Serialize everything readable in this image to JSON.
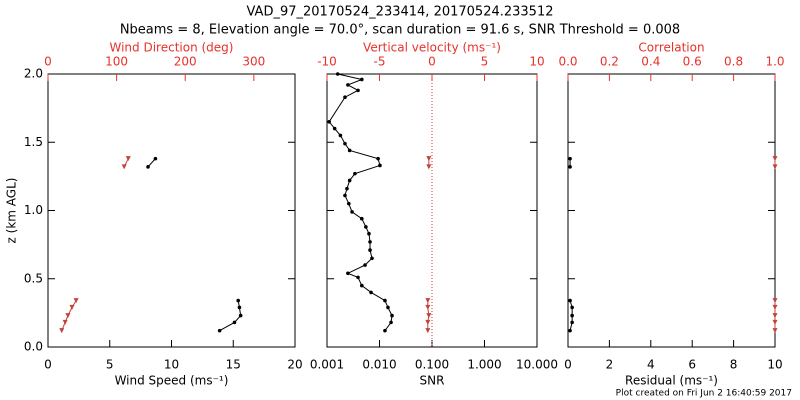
{
  "title": "VAD_97_20170524_233414, 20170524.233512",
  "subtitle": "Nbeams = 8, Elevation angle = 70.0°, scan duration = 91.6 s, SNR Threshold = 0.008",
  "footer": "Plot created on Fri Jun  2 16:40:59 2017",
  "chart_data": [
    {
      "type": "line",
      "ylabel": "z (km AGL)",
      "ylim": [
        0,
        2
      ],
      "yticks": [
        {
          "value": 0,
          "label": "0.0"
        },
        0.5,
        {
          "value": 1,
          "label": "1.0"
        },
        1.5,
        {
          "value": 2,
          "label": "2.0"
        }
      ],
      "xlabel": "Wind Speed (ms⁻¹)",
      "xlim": [
        0,
        20
      ],
      "xticks": [
        0,
        5,
        10,
        15,
        20
      ],
      "x2label": "Wind Direction (deg)",
      "x2lim": [
        0,
        360
      ],
      "x2ticks": [
        0,
        100,
        200,
        300
      ],
      "x2color": "#e8312a",
      "series": [
        {
          "color": "#000000",
          "y": [
            0.12,
            0.18,
            0.23,
            0.29,
            0.34,
            1.32,
            1.38
          ],
          "values": [
            13.9,
            15.1,
            15.6,
            15.5,
            15.4,
            8.1,
            8.7
          ]
        },
        {
          "color": "#c0443a",
          "axis": "x2",
          "y": [
            0.12,
            0.18,
            0.23,
            0.29,
            0.34,
            1.32,
            1.38
          ],
          "values": [
            20,
            25,
            29,
            35,
            41,
            111,
            117
          ]
        }
      ]
    },
    {
      "type": "line",
      "ylim": [
        0,
        2
      ],
      "yticks": [
        0,
        0.5,
        1,
        1.5,
        2
      ],
      "xlabel": "SNR",
      "xscale": "log",
      "xlim": [
        0.001,
        10
      ],
      "xticks": [
        0.001,
        {
          "value": 0.01,
          "label": "0.010"
        },
        {
          "value": 0.1,
          "label": "0.100"
        },
        {
          "value": 1,
          "label": "1.000"
        },
        {
          "value": 10,
          "label": "10.000"
        }
      ],
      "x2label": "Vertical velocity (ms⁻¹)",
      "x2lim": [
        -10,
        10
      ],
      "x2ticks": [
        -10,
        -5,
        0,
        5,
        10
      ],
      "x2color": "#e8312a",
      "refline_x2": 0,
      "series": [
        {
          "color": "#000000",
          "y": [
            0.12,
            0.18,
            0.23,
            0.29,
            0.34,
            0.4,
            0.45,
            0.51,
            0.54,
            0.6,
            0.65,
            0.71,
            0.77,
            0.83,
            0.88,
            0.94,
            0.99,
            1.05,
            1.11,
            1.16,
            1.22,
            1.27,
            1.33,
            1.38,
            1.44,
            1.49,
            1.55,
            1.6,
            1.65,
            1.83,
            1.88,
            1.92,
            1.96,
            2.0
          ],
          "values": [
            0.0127,
            0.0166,
            0.0173,
            0.0145,
            0.0127,
            0.0069,
            0.0046,
            0.0039,
            0.0025,
            0.0053,
            0.0072,
            0.0066,
            0.0066,
            0.0063,
            0.0055,
            0.0046,
            0.003,
            0.0026,
            0.0022,
            0.0024,
            0.0027,
            0.0034,
            0.0102,
            0.0094,
            0.0027,
            0.0022,
            0.0018,
            0.0014,
            0.0011,
            0.0022,
            0.0039,
            0.0025,
            0.0046,
            0.0016
          ]
        },
        {
          "color": "#c0443a",
          "axis": "x2",
          "y": [
            0.12,
            0.18,
            0.23,
            0.29,
            0.34,
            1.32,
            1.38
          ],
          "values": [
            -0.4,
            -0.4,
            -0.3,
            -0.4,
            -0.4,
            -0.3,
            -0.3
          ]
        }
      ]
    },
    {
      "type": "line",
      "ylim": [
        0,
        2
      ],
      "yticks": [
        0,
        0.5,
        1,
        1.5,
        2
      ],
      "xlabel": "Residual (ms⁻¹)",
      "xlim": [
        0,
        10
      ],
      "xticks": [
        0,
        2,
        4,
        6,
        8,
        10
      ],
      "x2label": "Correlation",
      "x2lim": [
        0,
        1
      ],
      "x2ticks": [
        {
          "value": 0,
          "label": "0.0"
        },
        0.2,
        0.4,
        0.6,
        0.8,
        {
          "value": 1,
          "label": "1.0"
        }
      ],
      "x2color": "#e8312a",
      "series": [
        {
          "color": "#000000",
          "y": [
            0.12,
            0.18,
            0.23,
            0.29,
            0.34,
            1.32,
            1.38
          ],
          "values": [
            0.1,
            0.2,
            0.2,
            0.2,
            0.1,
            0.1,
            0.1
          ]
        },
        {
          "color": "#c0443a",
          "axis": "x2",
          "y": [
            0.12,
            0.18,
            0.23,
            0.29,
            0.34,
            1.32,
            1.38
          ],
          "values": [
            1,
            1,
            1,
            1,
            1,
            1,
            1
          ]
        }
      ]
    }
  ]
}
